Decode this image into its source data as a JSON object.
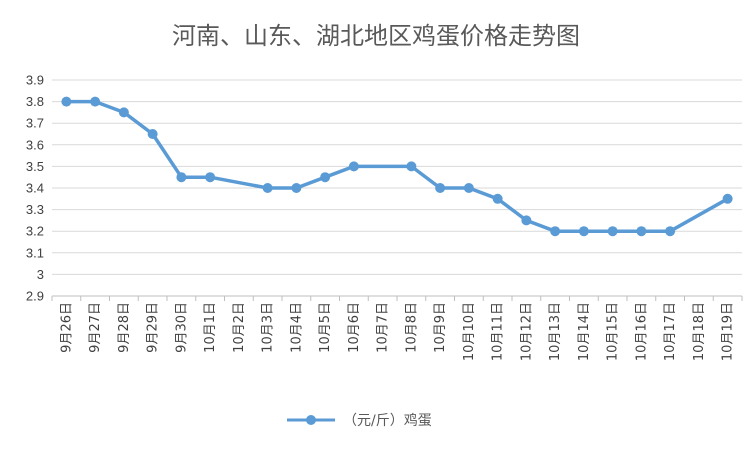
{
  "chart_data": {
    "type": "line",
    "title": "河南、山东、湖北地区鸡蛋价格走势图",
    "categories": [
      "9月26日",
      "9月27日",
      "9月28日",
      "9月29日",
      "9月30日",
      "10月1日",
      "10月2日",
      "10月3日",
      "10月4日",
      "10月5日",
      "10月6日",
      "10月7日",
      "10月8日",
      "10月9日",
      "10月10日",
      "10月11日",
      "10月12日",
      "10月13日",
      "10月14日",
      "10月15日",
      "10月16日",
      "10月17日",
      "10月18日",
      "10月19日"
    ],
    "series": [
      {
        "name": "（元/斤）鸡蛋",
        "color": "#5B9BD5",
        "values": [
          3.8,
          3.8,
          3.75,
          3.65,
          3.45,
          3.45,
          null,
          3.4,
          3.4,
          3.45,
          3.5,
          null,
          3.5,
          3.4,
          3.4,
          3.35,
          3.25,
          3.2,
          3.2,
          3.2,
          3.2,
          3.2,
          null,
          3.35
        ]
      }
    ],
    "yticks": [
      "2.9",
      "3",
      "3.1",
      "3.2",
      "3.3",
      "3.4",
      "3.5",
      "3.6",
      "3.7",
      "3.8",
      "3.9"
    ],
    "ylim": [
      2.9,
      3.9
    ],
    "grid": true,
    "legend_position": "bottom"
  }
}
